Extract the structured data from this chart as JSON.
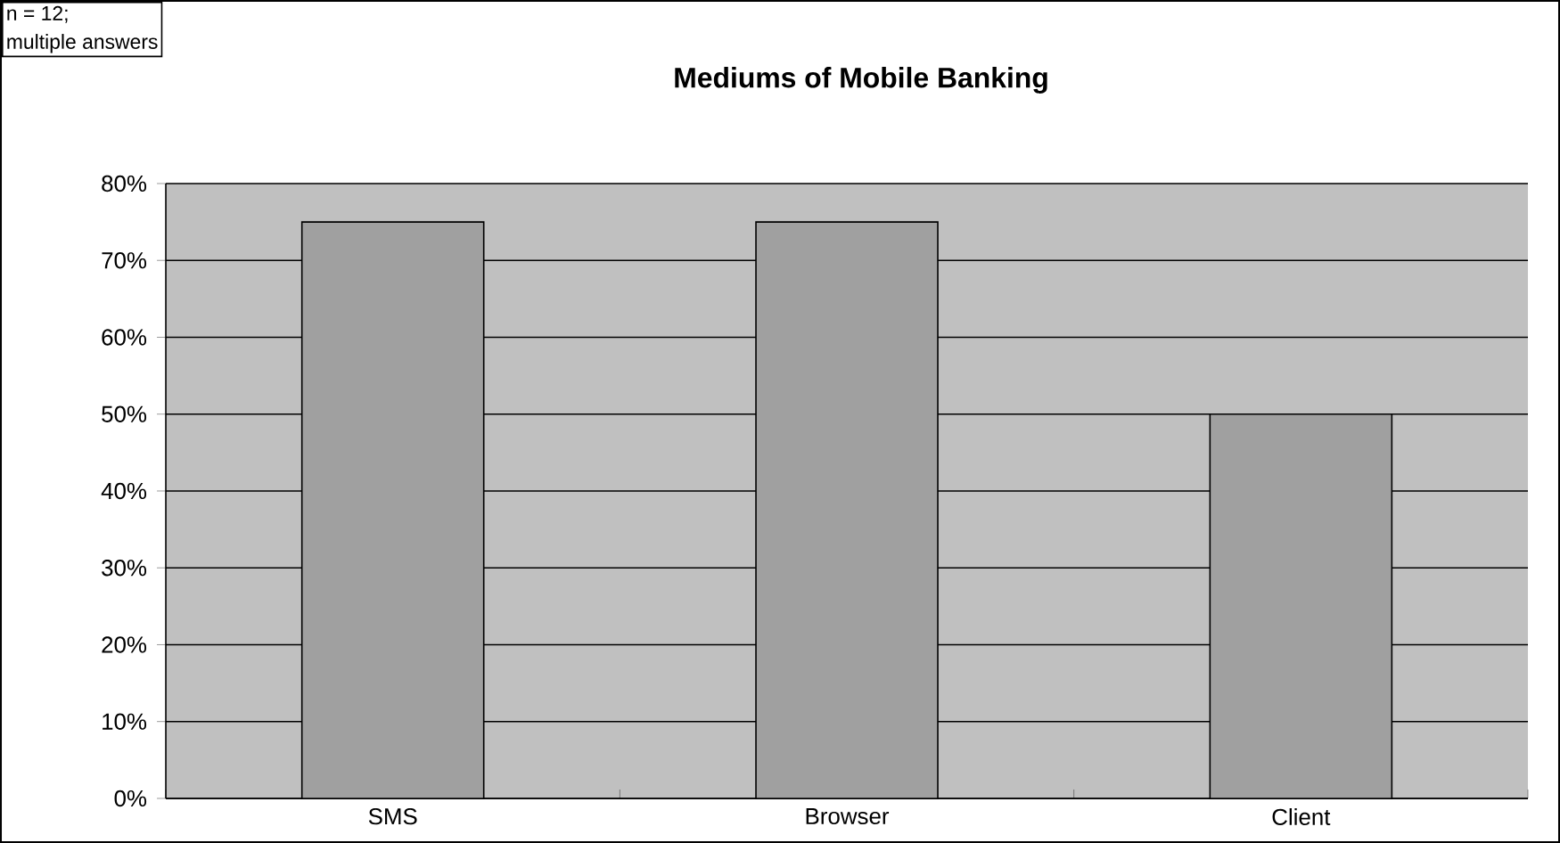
{
  "chart_data": {
    "type": "bar",
    "title": "Mediums of Mobile Banking",
    "annotations": [
      "n = 12;",
      "multiple answers"
    ],
    "categories": [
      "SMS",
      "Browser",
      "Client"
    ],
    "values": [
      75,
      75,
      50
    ],
    "color": "#a0a0a0",
    "ylim": [
      0,
      80
    ],
    "yticks": [
      {
        "value": 0,
        "label": "0%"
      },
      {
        "value": 10,
        "label": "10%"
      },
      {
        "value": 20,
        "label": "20%"
      },
      {
        "value": 30,
        "label": "30%"
      },
      {
        "value": 40,
        "label": "40%"
      },
      {
        "value": 50,
        "label": "50%"
      },
      {
        "value": 60,
        "label": "60%"
      },
      {
        "value": 70,
        "label": "70%"
      },
      {
        "value": 80,
        "label": "80%"
      }
    ],
    "grid": "y"
  }
}
